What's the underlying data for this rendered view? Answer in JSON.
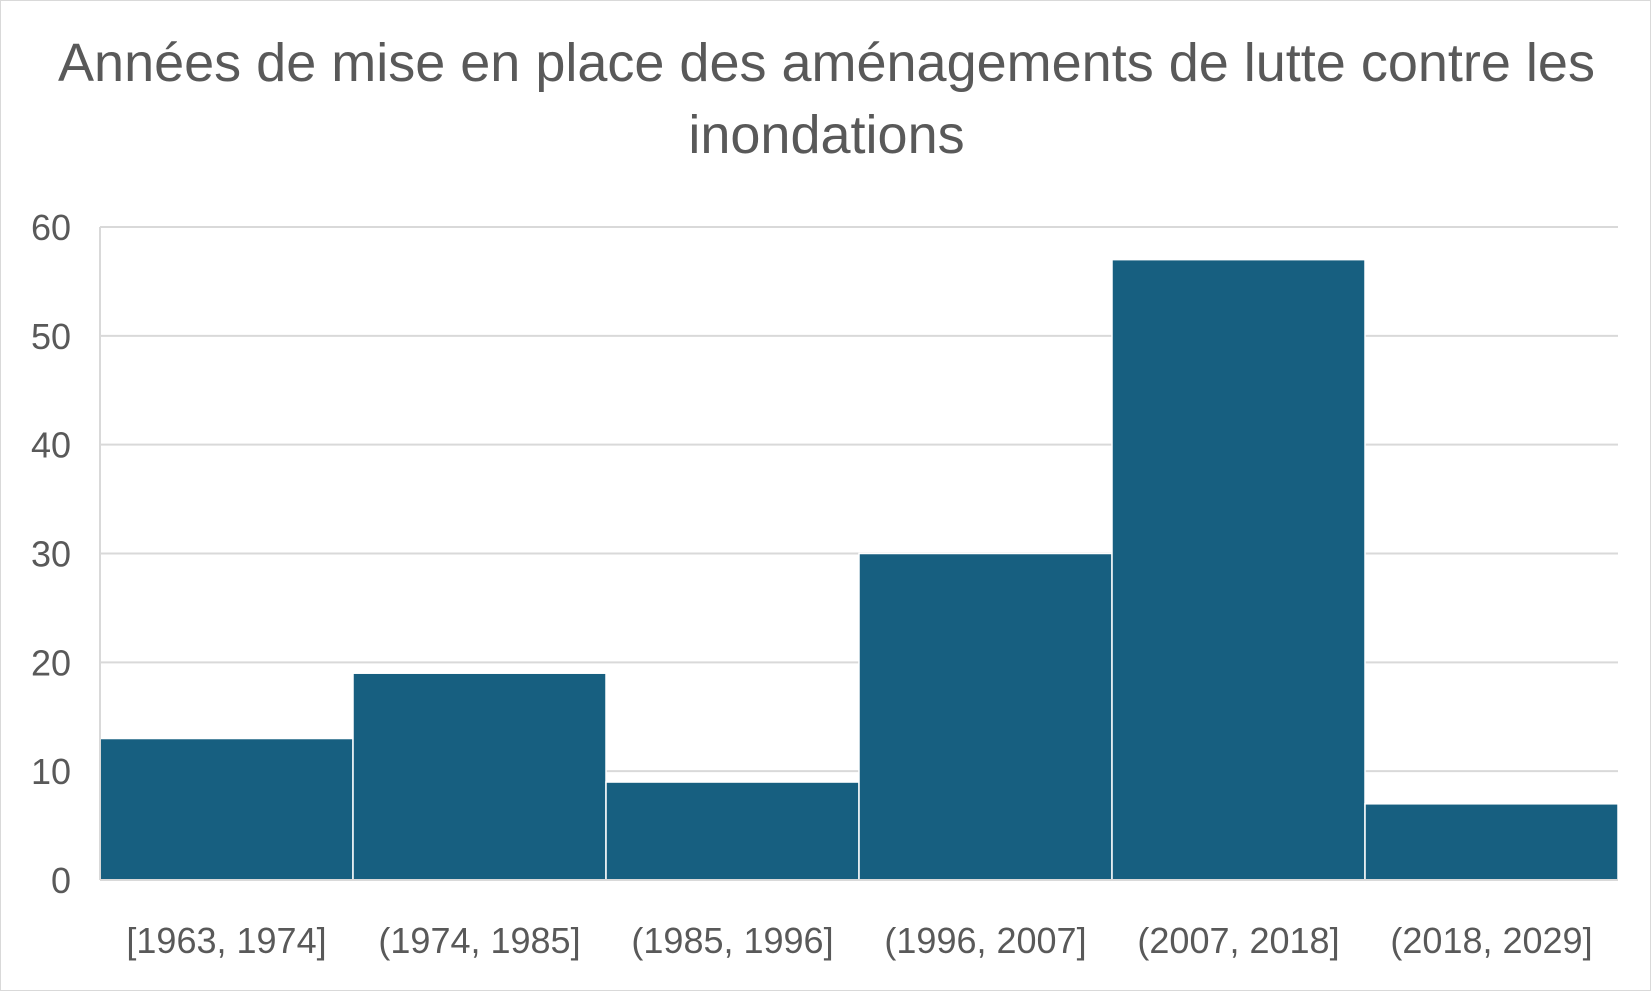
{
  "chart_data": {
    "type": "bar",
    "title": "Années de mise en place des aménagements de lutte contre les inondations",
    "categories": [
      "[1963, 1974]",
      "(1974, 1985]",
      "(1985, 1996]",
      "(1996, 2007]",
      "(2007, 2018]",
      "(2018, 2029]"
    ],
    "values": [
      13,
      19,
      9,
      30,
      57,
      7
    ],
    "ylim": [
      0,
      60
    ],
    "yticks": [
      0,
      10,
      20,
      30,
      40,
      50,
      60
    ],
    "xlabel": "",
    "ylabel": "",
    "grid": true,
    "legend": "none",
    "bar_color": "#175f80",
    "grid_color": "#d9d9d9",
    "text_color": "#595959"
  }
}
